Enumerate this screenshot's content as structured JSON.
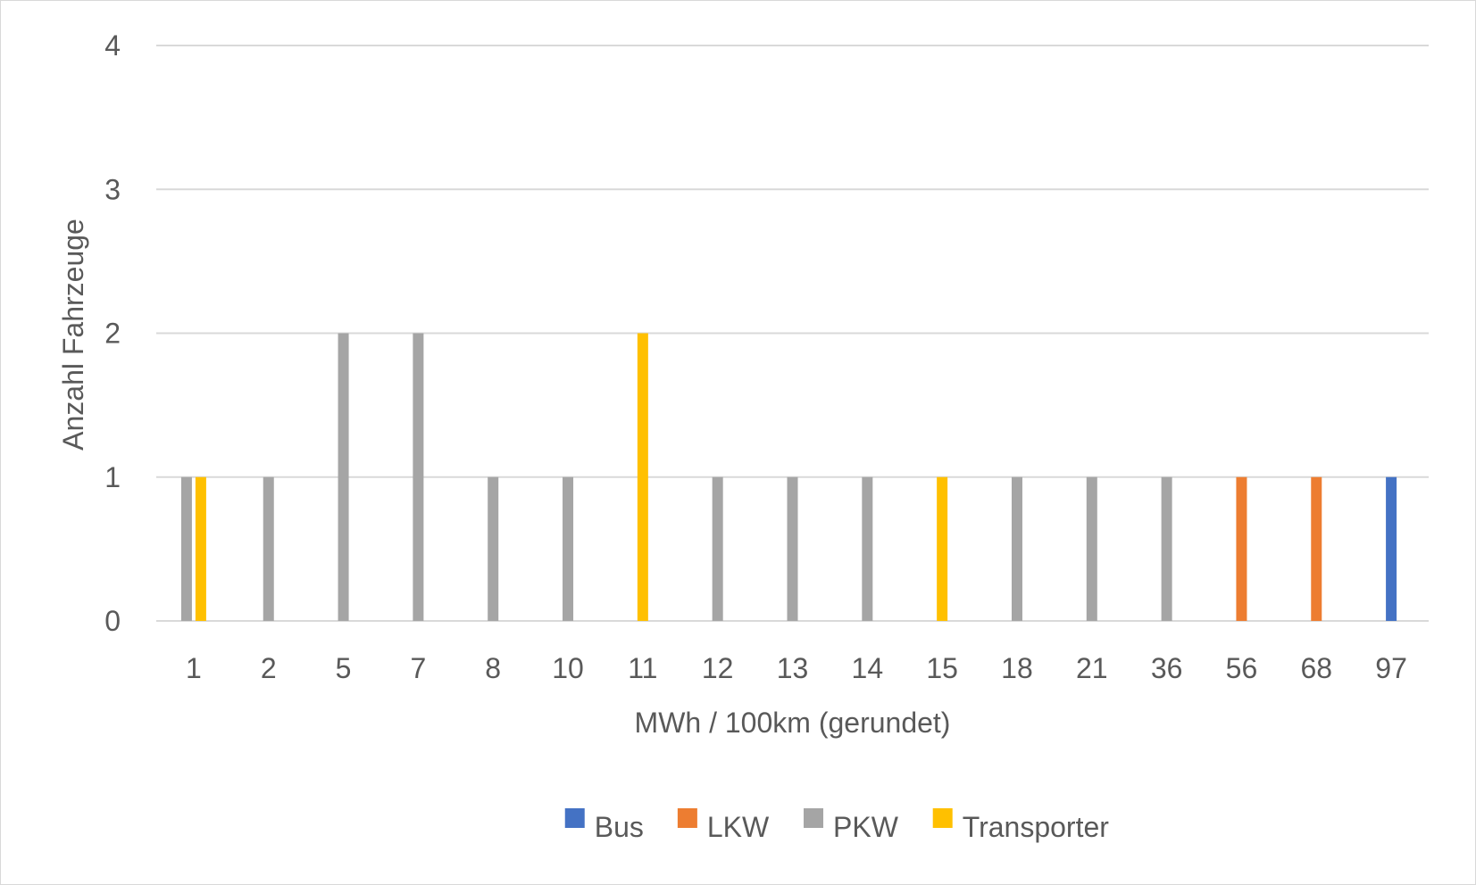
{
  "chart_data": {
    "type": "bar",
    "title": "",
    "xlabel": "MWh / 100km (gerundet)",
    "ylabel": "Anzahl Fahrzeuge",
    "ylim": [
      0,
      4
    ],
    "yticks": [
      "0",
      "1",
      "2",
      "3",
      "4"
    ],
    "grid": true,
    "legend_position": "bottom",
    "categories": [
      "1",
      "2",
      "5",
      "7",
      "8",
      "10",
      "11",
      "12",
      "13",
      "14",
      "15",
      "18",
      "21",
      "36",
      "56",
      "68",
      "97"
    ],
    "series": [
      {
        "name": "Bus",
        "color": "#4472c4",
        "values": [
          0,
          0,
          0,
          0,
          0,
          0,
          0,
          0,
          0,
          0,
          0,
          0,
          0,
          0,
          0,
          0,
          1
        ]
      },
      {
        "name": "LKW",
        "color": "#ed7d31",
        "values": [
          0,
          0,
          0,
          0,
          0,
          0,
          0,
          0,
          0,
          0,
          0,
          0,
          0,
          0,
          1,
          1,
          0
        ]
      },
      {
        "name": "PKW",
        "color": "#a5a5a5",
        "values": [
          1,
          1,
          2,
          2,
          1,
          1,
          0,
          1,
          1,
          1,
          0,
          1,
          1,
          1,
          0,
          0,
          0
        ]
      },
      {
        "name": "Transporter",
        "color": "#ffc000",
        "values": [
          1,
          0,
          0,
          0,
          0,
          0,
          2,
          0,
          0,
          0,
          1,
          0,
          0,
          0,
          0,
          0,
          0
        ]
      }
    ]
  }
}
